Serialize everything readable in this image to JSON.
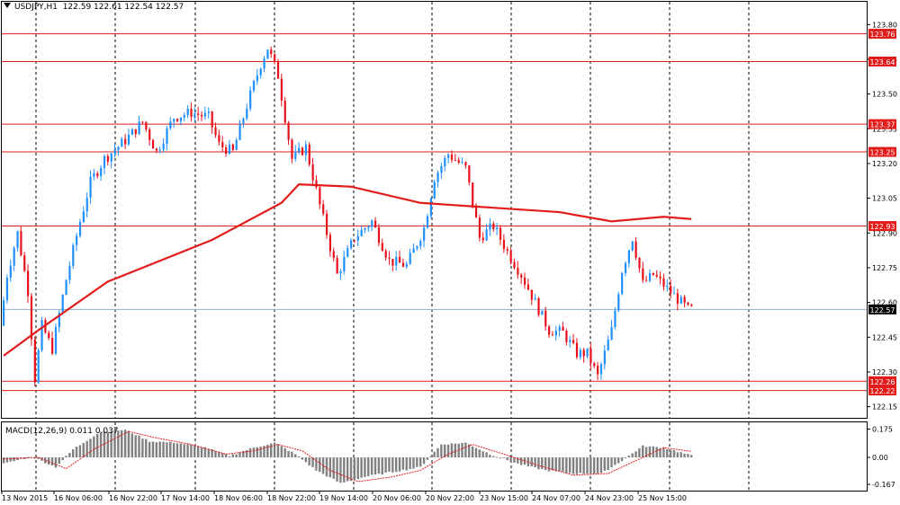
{
  "header": {
    "symbol": "USDJPY,H1",
    "ohlc": "122.59 122.61 122.54 122.57"
  },
  "macd_panel": {
    "label": "MACD(12,26,9) 0.011 0.037",
    "ticks": [
      "0.175",
      "0.00",
      "-0.167"
    ]
  },
  "colors": {
    "bull": "#1e90ff",
    "bear": "#e8101a",
    "ma": "#e21b1b",
    "level_line": "#e21b1b",
    "level_tag_bg": "#e21b1b",
    "price_line": "#8fb0d8",
    "price_tag_bg": "#000000",
    "grid": "#000000",
    "histogram": "#808080",
    "signal": "#e21b1b"
  },
  "chart_data": {
    "type": "candlestick",
    "instrument": "USDJPY",
    "timeframe": "H1",
    "y_axis_ticks": [
      "123.80",
      "123.65",
      "123.50",
      "123.35",
      "123.20",
      "123.05",
      "122.90",
      "122.75",
      "122.60",
      "122.45",
      "122.30",
      "122.15"
    ],
    "ylim": [
      122.1,
      123.9
    ],
    "x_axis_labels": [
      "13 Nov 2015",
      "16 Nov 06:00",
      "16 Nov 22:00",
      "17 Nov 14:00",
      "18 Nov 06:00",
      "18 Nov 22:00",
      "19 Nov 14:00",
      "20 Nov 06:00",
      "20 Nov 22:00",
      "23 Nov 15:00",
      "24 Nov 07:00",
      "24 Nov 23:00",
      "25 Nov 15:00"
    ],
    "horizontal_levels": [
      "123.76",
      "123.64",
      "123.37",
      "123.25",
      "122.93",
      "122.26",
      "122.22"
    ],
    "current_price": "122.57",
    "moving_average": [
      {
        "bar": 0,
        "value": 122.37
      },
      {
        "bar": 10,
        "value": 122.48
      },
      {
        "bar": 30,
        "value": 122.69
      },
      {
        "bar": 60,
        "value": 122.87
      },
      {
        "bar": 80,
        "value": 123.03
      },
      {
        "bar": 85,
        "value": 123.11
      },
      {
        "bar": 100,
        "value": 123.1
      },
      {
        "bar": 120,
        "value": 123.03
      },
      {
        "bar": 140,
        "value": 123.01
      },
      {
        "bar": 160,
        "value": 122.99
      },
      {
        "bar": 175,
        "value": 122.95
      },
      {
        "bar": 190,
        "value": 122.97
      },
      {
        "bar": 198,
        "value": 122.96
      }
    ],
    "price_path": [
      {
        "bar": 0,
        "value": 122.5
      },
      {
        "bar": 2,
        "value": 122.72
      },
      {
        "bar": 5,
        "value": 122.9
      },
      {
        "bar": 8,
        "value": 122.65
      },
      {
        "bar": 10,
        "value": 122.27
      },
      {
        "bar": 12,
        "value": 122.5
      },
      {
        "bar": 15,
        "value": 122.4
      },
      {
        "bar": 19,
        "value": 122.7
      },
      {
        "bar": 23,
        "value": 122.95
      },
      {
        "bar": 26,
        "value": 123.12
      },
      {
        "bar": 30,
        "value": 123.22
      },
      {
        "bar": 36,
        "value": 123.3
      },
      {
        "bar": 41,
        "value": 123.38
      },
      {
        "bar": 45,
        "value": 123.25
      },
      {
        "bar": 50,
        "value": 123.4
      },
      {
        "bar": 55,
        "value": 123.42
      },
      {
        "bar": 60,
        "value": 123.4
      },
      {
        "bar": 63,
        "value": 123.28
      },
      {
        "bar": 67,
        "value": 123.25
      },
      {
        "bar": 71,
        "value": 123.45
      },
      {
        "bar": 75,
        "value": 123.63
      },
      {
        "bar": 77,
        "value": 123.7
      },
      {
        "bar": 80,
        "value": 123.58
      },
      {
        "bar": 84,
        "value": 123.22
      },
      {
        "bar": 88,
        "value": 123.27
      },
      {
        "bar": 92,
        "value": 123.02
      },
      {
        "bar": 97,
        "value": 122.72
      },
      {
        "bar": 102,
        "value": 122.88
      },
      {
        "bar": 107,
        "value": 122.95
      },
      {
        "bar": 112,
        "value": 122.78
      },
      {
        "bar": 117,
        "value": 122.76
      },
      {
        "bar": 122,
        "value": 122.92
      },
      {
        "bar": 125,
        "value": 123.14
      },
      {
        "bar": 129,
        "value": 123.24
      },
      {
        "bar": 134,
        "value": 123.18
      },
      {
        "bar": 138,
        "value": 122.88
      },
      {
        "bar": 142,
        "value": 122.93
      },
      {
        "bar": 146,
        "value": 122.82
      },
      {
        "bar": 150,
        "value": 122.72
      },
      {
        "bar": 154,
        "value": 122.6
      },
      {
        "bar": 158,
        "value": 122.48
      },
      {
        "bar": 162,
        "value": 122.47
      },
      {
        "bar": 166,
        "value": 122.38
      },
      {
        "bar": 169,
        "value": 122.38
      },
      {
        "bar": 172,
        "value": 122.28
      },
      {
        "bar": 176,
        "value": 122.48
      },
      {
        "bar": 179,
        "value": 122.74
      },
      {
        "bar": 182,
        "value": 122.88
      },
      {
        "bar": 185,
        "value": 122.68
      },
      {
        "bar": 188,
        "value": 122.72
      },
      {
        "bar": 192,
        "value": 122.66
      },
      {
        "bar": 196,
        "value": 122.6
      },
      {
        "bar": 198,
        "value": 122.57
      }
    ],
    "macd_histogram_path": [
      {
        "bar": 0,
        "value": -0.04
      },
      {
        "bar": 8,
        "value": 0.005
      },
      {
        "bar": 15,
        "value": -0.06
      },
      {
        "bar": 20,
        "value": 0.05
      },
      {
        "bar": 28,
        "value": 0.16
      },
      {
        "bar": 35,
        "value": 0.17
      },
      {
        "bar": 42,
        "value": 0.1
      },
      {
        "bar": 50,
        "value": 0.09
      },
      {
        "bar": 58,
        "value": 0.06
      },
      {
        "bar": 65,
        "value": 0.01
      },
      {
        "bar": 72,
        "value": 0.06
      },
      {
        "bar": 78,
        "value": 0.09
      },
      {
        "bar": 84,
        "value": 0.02
      },
      {
        "bar": 90,
        "value": -0.08
      },
      {
        "bar": 97,
        "value": -0.16
      },
      {
        "bar": 104,
        "value": -0.12
      },
      {
        "bar": 112,
        "value": -0.09
      },
      {
        "bar": 120,
        "value": -0.06
      },
      {
        "bar": 126,
        "value": 0.08
      },
      {
        "bar": 133,
        "value": 0.09
      },
      {
        "bar": 140,
        "value": 0.02
      },
      {
        "bar": 148,
        "value": -0.04
      },
      {
        "bar": 156,
        "value": -0.08
      },
      {
        "bar": 164,
        "value": -0.1
      },
      {
        "bar": 172,
        "value": -0.1
      },
      {
        "bar": 178,
        "value": -0.02
      },
      {
        "bar": 184,
        "value": 0.07
      },
      {
        "bar": 190,
        "value": 0.06
      },
      {
        "bar": 198,
        "value": 0.011
      }
    ],
    "macd_signal_path": [
      {
        "bar": 0,
        "value": -0.01
      },
      {
        "bar": 10,
        "value": 0.0
      },
      {
        "bar": 18,
        "value": -0.07
      },
      {
        "bar": 26,
        "value": 0.05
      },
      {
        "bar": 36,
        "value": 0.16
      },
      {
        "bar": 44,
        "value": 0.12
      },
      {
        "bar": 54,
        "value": 0.08
      },
      {
        "bar": 64,
        "value": 0.02
      },
      {
        "bar": 72,
        "value": 0.04
      },
      {
        "bar": 79,
        "value": 0.08
      },
      {
        "bar": 86,
        "value": 0.04
      },
      {
        "bar": 94,
        "value": -0.08
      },
      {
        "bar": 102,
        "value": -0.15
      },
      {
        "bar": 112,
        "value": -0.12
      },
      {
        "bar": 120,
        "value": -0.08
      },
      {
        "bar": 128,
        "value": 0.02
      },
      {
        "bar": 135,
        "value": 0.08
      },
      {
        "bar": 144,
        "value": 0.02
      },
      {
        "bar": 154,
        "value": -0.05
      },
      {
        "bar": 164,
        "value": -0.11
      },
      {
        "bar": 174,
        "value": -0.1
      },
      {
        "bar": 182,
        "value": -0.02
      },
      {
        "bar": 190,
        "value": 0.06
      },
      {
        "bar": 198,
        "value": 0.037
      }
    ]
  }
}
